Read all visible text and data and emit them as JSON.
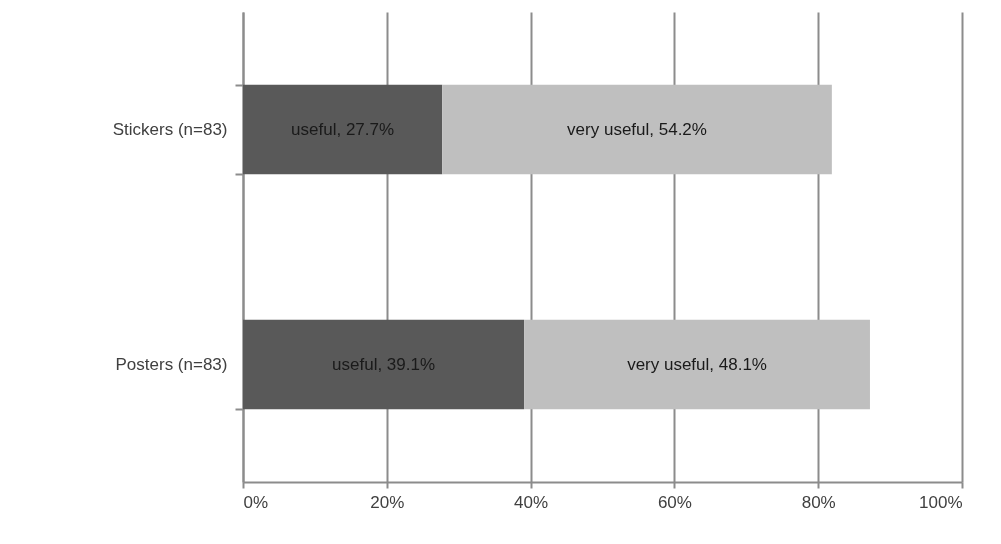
{
  "chart_data": {
    "type": "bar",
    "orientation": "horizontal",
    "stacked": true,
    "categories": [
      "Stickers (n=83)",
      "Posters (n=83)"
    ],
    "series": [
      {
        "color": "#595959",
        "values": [
          27.7,
          39.1
        ],
        "value_labels": [
          "useful, 27.7%",
          "useful, 39.1%"
        ]
      },
      {
        "color": "#bfbfbf",
        "values": [
          54.2,
          48.1
        ],
        "value_labels": [
          "very useful, 54.2%",
          "very useful, 48.1%"
        ]
      }
    ],
    "xlim": [
      0,
      100
    ],
    "xticks": [
      {
        "value": 0,
        "label": "0%"
      },
      {
        "value": 20,
        "label": "20%"
      },
      {
        "value": 40,
        "label": "40%"
      },
      {
        "value": 60,
        "label": "60%"
      },
      {
        "value": 80,
        "label": "80%"
      },
      {
        "value": 100,
        "label": "100%"
      }
    ],
    "grid": "x"
  }
}
